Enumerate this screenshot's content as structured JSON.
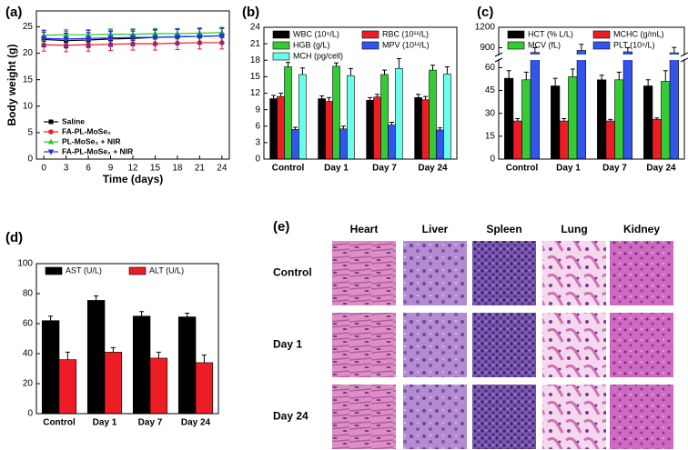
{
  "chart_data": [
    {
      "label": "(a)",
      "type": "line",
      "xlabel": "Time (days)",
      "ylabel": "Body weight (g)",
      "x": [
        0,
        3,
        6,
        9,
        12,
        15,
        18,
        21,
        24
      ],
      "xlim": [
        -1,
        25
      ],
      "xticks": [
        0,
        3,
        6,
        9,
        12,
        15,
        18,
        21,
        24
      ],
      "ylim": [
        0,
        28
      ],
      "yticks": [
        0,
        5,
        10,
        15,
        20,
        25
      ],
      "legend": "lower left",
      "series": [
        {
          "name": "Saline",
          "color": "#000000",
          "marker": "square",
          "values": [
            22.6,
            22.4,
            22.5,
            22.7,
            22.8,
            23.0,
            23.1,
            23.2,
            23.3
          ],
          "errors": [
            1.4,
            1.4,
            1.4,
            1.4,
            1.4,
            1.4,
            1.4,
            1.4,
            1.4
          ]
        },
        {
          "name": "FA-PL-MoSe₂",
          "color": "#ee1c24",
          "marker": "circle",
          "values": [
            21.6,
            21.5,
            21.6,
            21.7,
            21.8,
            21.8,
            21.9,
            22.0,
            22.0
          ],
          "errors": [
            1.2,
            1.2,
            1.2,
            1.2,
            1.2,
            1.2,
            1.2,
            1.2,
            1.2
          ]
        },
        {
          "name": "PL-MoSe₂ + NIR",
          "color": "#22cc22",
          "marker": "triangle-up",
          "values": [
            23.4,
            23.5,
            23.5,
            23.6,
            23.6,
            23.7,
            23.7,
            23.8,
            23.9
          ],
          "errors": [
            1.0,
            1.0,
            1.0,
            1.0,
            1.0,
            1.0,
            1.0,
            1.0,
            1.0
          ]
        },
        {
          "name": "FA-PL-MoSe₂ + NIR",
          "color": "#2233ee",
          "marker": "triangle-down",
          "values": [
            22.8,
            22.7,
            22.8,
            22.9,
            23.0,
            23.0,
            23.1,
            23.2,
            23.3
          ],
          "errors": [
            1.5,
            1.5,
            1.5,
            1.5,
            1.5,
            1.5,
            1.5,
            1.5,
            1.5
          ]
        }
      ]
    },
    {
      "label": "(b)",
      "type": "bar",
      "categories": [
        "Control",
        "Day 1",
        "Day 7",
        "Day 24"
      ],
      "ylim": [
        0,
        24
      ],
      "yticks": [
        0,
        3,
        6,
        9,
        12,
        15,
        18,
        21,
        24
      ],
      "legend": "upper center",
      "series": [
        {
          "name": "WBC (10⁹/L)",
          "color": "#000000",
          "values": [
            11.0,
            11.0,
            10.7,
            11.2
          ],
          "errors": [
            0.6,
            0.5,
            0.5,
            0.6
          ]
        },
        {
          "name": "RBC (10¹²/L)",
          "color": "#ee1c24",
          "values": [
            11.4,
            10.5,
            11.3,
            10.8
          ],
          "errors": [
            0.6,
            0.7,
            0.5,
            0.6
          ]
        },
        {
          "name": "HGB (g/L)",
          "color": "#33cc33",
          "values": [
            16.8,
            16.9,
            15.4,
            16.2
          ],
          "errors": [
            0.8,
            0.6,
            0.8,
            0.9
          ]
        },
        {
          "name": "MPV (10¹²/L)",
          "color": "#3355ee",
          "values": [
            5.4,
            5.5,
            6.2,
            5.3
          ],
          "errors": [
            0.4,
            0.5,
            0.5,
            0.4
          ]
        },
        {
          "name": "MCH (pg/cell)",
          "color": "#66ffee",
          "values": [
            15.4,
            15.2,
            16.5,
            15.5
          ],
          "errors": [
            1.2,
            1.3,
            1.8,
            1.3
          ]
        }
      ]
    },
    {
      "label": "(c)",
      "type": "bar",
      "categories": [
        "Control",
        "Day 1",
        "Day 7",
        "Day 24"
      ],
      "ylim": [
        0,
        65
      ],
      "yticks": [
        0,
        15,
        30,
        45,
        60
      ],
      "ylim_upper": [
        800,
        1200
      ],
      "yticks_upper": [
        900,
        1200
      ],
      "legend": "upper center",
      "series": [
        {
          "name": "HCT (% L/L)",
          "color": "#000000",
          "values": [
            53,
            48,
            52,
            48
          ],
          "errors": [
            5,
            5,
            3,
            4
          ]
        },
        {
          "name": "MCHC (g/mL)",
          "color": "#ee1c24",
          "values": [
            25,
            25,
            25,
            26
          ],
          "errors": [
            1.5,
            1.5,
            1,
            1
          ]
        },
        {
          "name": "MCV (fL)",
          "color": "#33cc33",
          "values": [
            52,
            54,
            52,
            51
          ],
          "errors": [
            5,
            5,
            5,
            7
          ]
        },
        {
          "name": "PLT (10⁹/L)",
          "color": "#3355ee",
          "values": [
            830,
            860,
            840,
            825
          ],
          "errors": [
            70,
            90,
            60,
            80
          ]
        }
      ]
    },
    {
      "label": "(d)",
      "type": "bar",
      "categories": [
        "Control",
        "Day 1",
        "Day 7",
        "Day 24"
      ],
      "ylim": [
        0,
        100
      ],
      "yticks": [
        0,
        20,
        40,
        60,
        80,
        100
      ],
      "legend": "upper center",
      "series": [
        {
          "name": "AST (U/L)",
          "color": "#000000",
          "values": [
            62,
            75.5,
            65,
            64.5
          ],
          "errors": [
            3,
            3,
            3,
            2.5
          ]
        },
        {
          "name": "ALT (U/L)",
          "color": "#ee1c24",
          "values": [
            36,
            41,
            37,
            34
          ],
          "errors": [
            5,
            3,
            4,
            5
          ]
        }
      ]
    }
  ],
  "histology": {
    "label": "(e)",
    "columns": [
      "Heart",
      "Liver",
      "Spleen",
      "Lung",
      "Kidney"
    ],
    "rows": [
      "Control",
      "Day 1",
      "Day 24"
    ]
  }
}
